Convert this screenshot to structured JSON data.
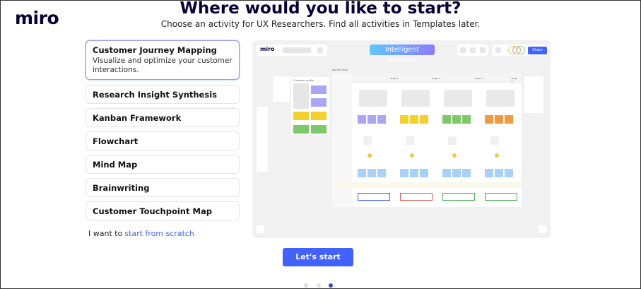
{
  "brand": "miro",
  "header": {
    "title": "Where would you like to start?",
    "subtitle": "Choose an activity for UX Researchers. Find all activities in Templates later."
  },
  "activities": [
    {
      "label": "Customer Journey Mapping",
      "description": "Visualize and optimize your customer interactions.",
      "selected": true
    },
    {
      "label": "Research Insight Synthesis"
    },
    {
      "label": "Kanban Framework"
    },
    {
      "label": "Flowchart"
    },
    {
      "label": "Mind Map"
    },
    {
      "label": "Brainwriting"
    },
    {
      "label": "Customer Touchpoint Map"
    }
  ],
  "scratch": {
    "prefix": "I want to",
    "link": "start from scratch"
  },
  "preview": {
    "logo": "miro",
    "badge": "Intelligent template",
    "share": "Share",
    "board_title": "Journey Map",
    "stages": [
      "Stage 1",
      "Stage 2",
      "Stage 3",
      "Stage 4"
    ],
    "profile_title": "Customer profile"
  },
  "cta": "Let's start",
  "pagination": {
    "current": 3,
    "total": 3
  },
  "colors": {
    "accent": "#4262ff",
    "sticky_blue": "#a8a6f5",
    "sticky_yellow": "#f5d02a",
    "sticky_green": "#7dc96a",
    "sticky_orange": "#f29a3f",
    "sticky_lightblue": "#a9d0f7"
  }
}
